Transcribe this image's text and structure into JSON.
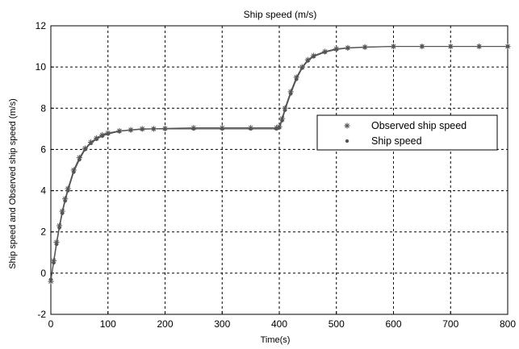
{
  "chart_data": {
    "type": "line",
    "title": "Ship speed (m/s)",
    "xlabel": "Time(s)",
    "ylabel": "Ship speed and Observed ship speed (m/s)",
    "xlim": [
      0,
      800
    ],
    "ylim": [
      -2,
      12
    ],
    "xticks": [
      0,
      100,
      200,
      300,
      400,
      500,
      600,
      700,
      800
    ],
    "yticks": [
      -2,
      0,
      2,
      4,
      6,
      8,
      10,
      12
    ],
    "grid": true,
    "grid_style": "dashed",
    "legend_position": "right",
    "series": [
      {
        "name": "Observed ship speed",
        "marker": "star",
        "color": "#555555",
        "x": [
          0,
          5,
          10,
          15,
          20,
          25,
          30,
          40,
          50,
          60,
          70,
          80,
          90,
          100,
          120,
          140,
          160,
          180,
          200,
          250,
          300,
          350,
          395,
          400,
          405,
          410,
          420,
          430,
          440,
          450,
          460,
          480,
          500,
          520,
          550,
          600,
          650,
          700,
          750,
          800
        ],
        "y": [
          -0.4,
          0.6,
          1.5,
          2.3,
          3.0,
          3.6,
          4.1,
          5.0,
          5.6,
          6.05,
          6.35,
          6.55,
          6.7,
          6.8,
          6.9,
          6.95,
          7.0,
          7.0,
          7.02,
          7.05,
          7.05,
          7.05,
          7.05,
          7.1,
          7.5,
          8.0,
          8.8,
          9.5,
          10.0,
          10.35,
          10.55,
          10.75,
          10.88,
          10.93,
          10.97,
          11.0,
          11.0,
          11.0,
          11.0,
          11.0
        ]
      },
      {
        "name": "Ship speed",
        "marker": "dot",
        "color": "#555555",
        "x": [
          0,
          5,
          10,
          15,
          20,
          25,
          30,
          40,
          50,
          60,
          70,
          80,
          90,
          100,
          120,
          140,
          160,
          180,
          200,
          250,
          300,
          350,
          395,
          400,
          405,
          410,
          420,
          430,
          440,
          450,
          460,
          480,
          500,
          520,
          550,
          600,
          650,
          700,
          750,
          800
        ],
        "y": [
          -0.3,
          0.5,
          1.4,
          2.2,
          2.9,
          3.5,
          4.0,
          4.9,
          5.5,
          6.0,
          6.3,
          6.5,
          6.65,
          6.75,
          6.88,
          6.94,
          6.98,
          7.0,
          7.0,
          7.0,
          7.0,
          7.0,
          7.0,
          7.05,
          7.4,
          7.9,
          8.7,
          9.4,
          9.95,
          10.3,
          10.5,
          10.72,
          10.85,
          10.92,
          10.96,
          11.0,
          11.0,
          11.0,
          11.0,
          11.0
        ]
      }
    ]
  }
}
